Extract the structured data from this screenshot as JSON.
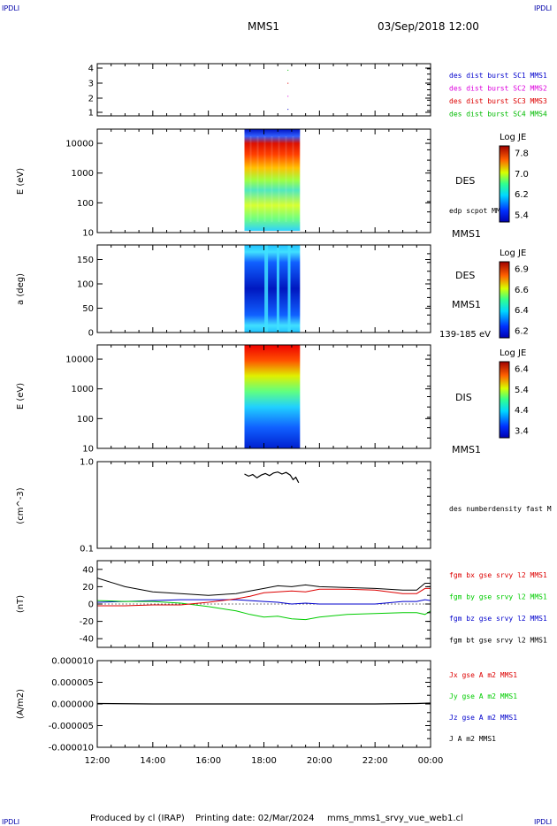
{
  "header": {
    "corner_label": "IPDLI",
    "spacecraft": "MMS1",
    "datetime": "03/Sep/2018 12:00"
  },
  "footer": {
    "producer": "Produced by cl (IRAP)",
    "printing_date": "Printing date: 02/Mar/2024",
    "filename": "mms_mms1_srvy_vue_web1.cl"
  },
  "time_axis": {
    "ticks": [
      "12:00",
      "14:00",
      "16:00",
      "18:00",
      "20:00",
      "22:00",
      "00:00"
    ],
    "range_hours": [
      12,
      24
    ],
    "burst_interval_hours": [
      17.3,
      19.3
    ]
  },
  "colors": {
    "mms1": "#0000cc",
    "mms2": "#dd00dd",
    "mms3": "#dd0000",
    "mms4": "#00bb00",
    "bx": "#dd0000",
    "by": "#00cc00",
    "bz": "#0000cc",
    "bt": "#000000"
  },
  "panels": {
    "burst": {
      "ticks": [
        "4",
        "3",
        "2",
        "1"
      ],
      "legend": [
        {
          "label": "des dist burst SC1 MMS1",
          "color": "#0000cc"
        },
        {
          "label": "des dist burst SC2 MMS2",
          "color": "#dd00dd"
        },
        {
          "label": "des dist burst SC3 MMS3",
          "color": "#dd0000"
        },
        {
          "label": "des dist burst SC4 MMS4",
          "color": "#00bb00"
        }
      ]
    },
    "des_energy": {
      "ylabel": "E (eV)",
      "ticks": [
        "10000",
        "1000",
        "100",
        "10"
      ],
      "label": "DES",
      "sublabel": "edp scpot MMS1",
      "bottom_label": "MMS1",
      "colorbar": {
        "title": "Log JE",
        "ticks": [
          "7.8",
          "7.0",
          "6.2",
          "5.4"
        ]
      }
    },
    "des_pitch": {
      "ylabel": "a (deg)",
      "ticks": [
        "150",
        "100",
        "50",
        "0"
      ],
      "label": "DES",
      "sublabel": "MMS1",
      "bottom_label": "139-185 eV",
      "colorbar": {
        "title": "Log JE",
        "ticks": [
          "6.9",
          "6.6",
          "6.4",
          "6.2"
        ]
      }
    },
    "dis_energy": {
      "ylabel": "E (eV)",
      "ticks": [
        "10000",
        "1000",
        "100",
        "10"
      ],
      "label": "DIS",
      "bottom_label": "MMS1",
      "colorbar": {
        "title": "Log JE",
        "ticks": [
          "6.4",
          "5.4",
          "4.4",
          "3.4"
        ]
      }
    },
    "density": {
      "ylabel": "(cm^-3)",
      "ticks": [
        "1.0",
        "0.1"
      ],
      "legend": "des numberdensity fast M"
    },
    "bfield": {
      "ylabel": "(nT)",
      "ticks": [
        "40",
        "20",
        "0",
        "-20",
        "-40"
      ],
      "legend": [
        {
          "label": "fgm bx gse srvy l2 MMS1",
          "color": "#dd0000"
        },
        {
          "label": "fgm by gse srvy l2 MMS1",
          "color": "#00cc00"
        },
        {
          "label": "fgm bz gse srvy l2 MMS1",
          "color": "#0000cc"
        },
        {
          "label": "fgm bt gse srvy l2 MMS1",
          "color": "#000000"
        }
      ]
    },
    "current": {
      "ylabel": "(A/m2)",
      "ticks": [
        "0.000010",
        "0.000005",
        "0.000000",
        "-0.000005",
        "-0.000010"
      ],
      "legend": [
        {
          "label": "Jx gse A m2 MMS1",
          "color": "#dd0000"
        },
        {
          "label": "Jy gse A m2 MMS1",
          "color": "#00cc00"
        },
        {
          "label": "Jz gse A m2 MMS1",
          "color": "#0000cc"
        },
        {
          "label": "J A m2 MMS1",
          "color": "#000000"
        }
      ]
    }
  },
  "chart_data": [
    {
      "type": "scatter",
      "name_hint": "burst availability",
      "ylim": [
        0.5,
        4.5
      ],
      "series": [
        {
          "name": "des dist burst SC1 MMS1",
          "x": [
            18.85
          ],
          "y": [
            1
          ]
        },
        {
          "name": "des dist burst SC2 MMS2",
          "x": [
            18.85
          ],
          "y": [
            2
          ]
        },
        {
          "name": "des dist burst SC3 MMS3",
          "x": [
            18.85
          ],
          "y": [
            3
          ]
        },
        {
          "name": "des dist burst SC4 MMS4",
          "x": [
            18.85
          ],
          "y": [
            4
          ]
        }
      ]
    },
    {
      "type": "heatmap",
      "ylabel": "E (eV)",
      "y_scale": "log",
      "ylim": [
        10,
        30000
      ],
      "x_range": [
        17.3,
        19.3
      ],
      "colorbar_range": [
        5.4,
        7.8
      ]
    },
    {
      "type": "heatmap",
      "ylabel": "a (deg)",
      "ylim": [
        0,
        180
      ],
      "x_range": [
        17.3,
        19.3
      ],
      "colorbar_range": [
        6.2,
        6.9
      ]
    },
    {
      "type": "heatmap",
      "ylabel": "E (eV)",
      "y_scale": "log",
      "ylim": [
        10,
        30000
      ],
      "x_range": [
        17.3,
        19.3
      ],
      "colorbar_range": [
        3.4,
        6.4
      ]
    },
    {
      "type": "line",
      "ylabel": "(cm^-3)",
      "y_scale": "log",
      "ylim": [
        0.1,
        1.0
      ],
      "series": [
        {
          "name": "des numberdensity fast M",
          "x": [
            17.3,
            17.45,
            17.6,
            17.75,
            17.9,
            18.05,
            18.2,
            18.35,
            18.5,
            18.65,
            18.8,
            18.95,
            19.05,
            19.15,
            19.25
          ],
          "y": [
            0.72,
            0.68,
            0.71,
            0.65,
            0.7,
            0.73,
            0.69,
            0.74,
            0.76,
            0.72,
            0.75,
            0.7,
            0.62,
            0.66,
            0.57
          ]
        }
      ]
    },
    {
      "type": "line",
      "ylabel": "(nT)",
      "ylim": [
        -50,
        50
      ],
      "series": [
        {
          "name": "fgm bx gse srvy l2 MMS1",
          "x": [
            12,
            13,
            14,
            15,
            16,
            17,
            17.5,
            18,
            18.5,
            19,
            19.5,
            20,
            21,
            22,
            23,
            23.5,
            23.8,
            24
          ],
          "y": [
            -2,
            -2,
            -1,
            -1,
            2,
            6,
            9,
            13,
            14,
            15,
            14,
            17,
            17,
            16,
            12,
            12,
            18,
            18
          ]
        },
        {
          "name": "fgm by gse srvy l2 MMS1",
          "x": [
            12,
            13,
            14,
            15,
            16,
            17,
            17.5,
            18,
            18.5,
            19,
            19.5,
            20,
            21,
            22,
            23,
            23.5,
            23.8,
            24
          ],
          "y": [
            4,
            3,
            3,
            1,
            -3,
            -8,
            -12,
            -15,
            -14,
            -17,
            -18,
            -15,
            -12,
            -11,
            -10,
            -10,
            -12,
            -8
          ]
        },
        {
          "name": "fgm bz gse srvy l2 MMS1",
          "x": [
            12,
            13,
            14,
            15,
            16,
            17,
            17.5,
            18,
            18.5,
            19,
            19.5,
            20,
            21,
            22,
            23,
            23.5,
            23.8,
            24
          ],
          "y": [
            2,
            3,
            4,
            5,
            5,
            5,
            4,
            3,
            2,
            0,
            1,
            0,
            0,
            0,
            3,
            3,
            5,
            4
          ]
        },
        {
          "name": "fgm bt gse srvy l2 MMS1",
          "x": [
            12,
            13,
            14,
            15,
            16,
            17,
            17.5,
            18,
            18.5,
            19,
            19.5,
            20,
            21,
            22,
            23,
            23.5,
            23.8,
            24
          ],
          "y": [
            30,
            20,
            14,
            12,
            10,
            12,
            15,
            18,
            21,
            20,
            22,
            20,
            19,
            18,
            16,
            16,
            24,
            24
          ]
        }
      ]
    },
    {
      "type": "line",
      "ylabel": "(A/m2)",
      "ylim": [
        -1e-05,
        1e-05
      ],
      "series": [
        {
          "name": "J A m2 MMS1",
          "x": [
            12,
            14,
            16,
            18,
            20,
            22,
            23.5,
            24
          ],
          "y": [
            1e-07,
            0.0,
            0.0,
            0.0,
            0.0,
            0.0,
            1e-07,
            2e-07
          ]
        }
      ]
    }
  ]
}
